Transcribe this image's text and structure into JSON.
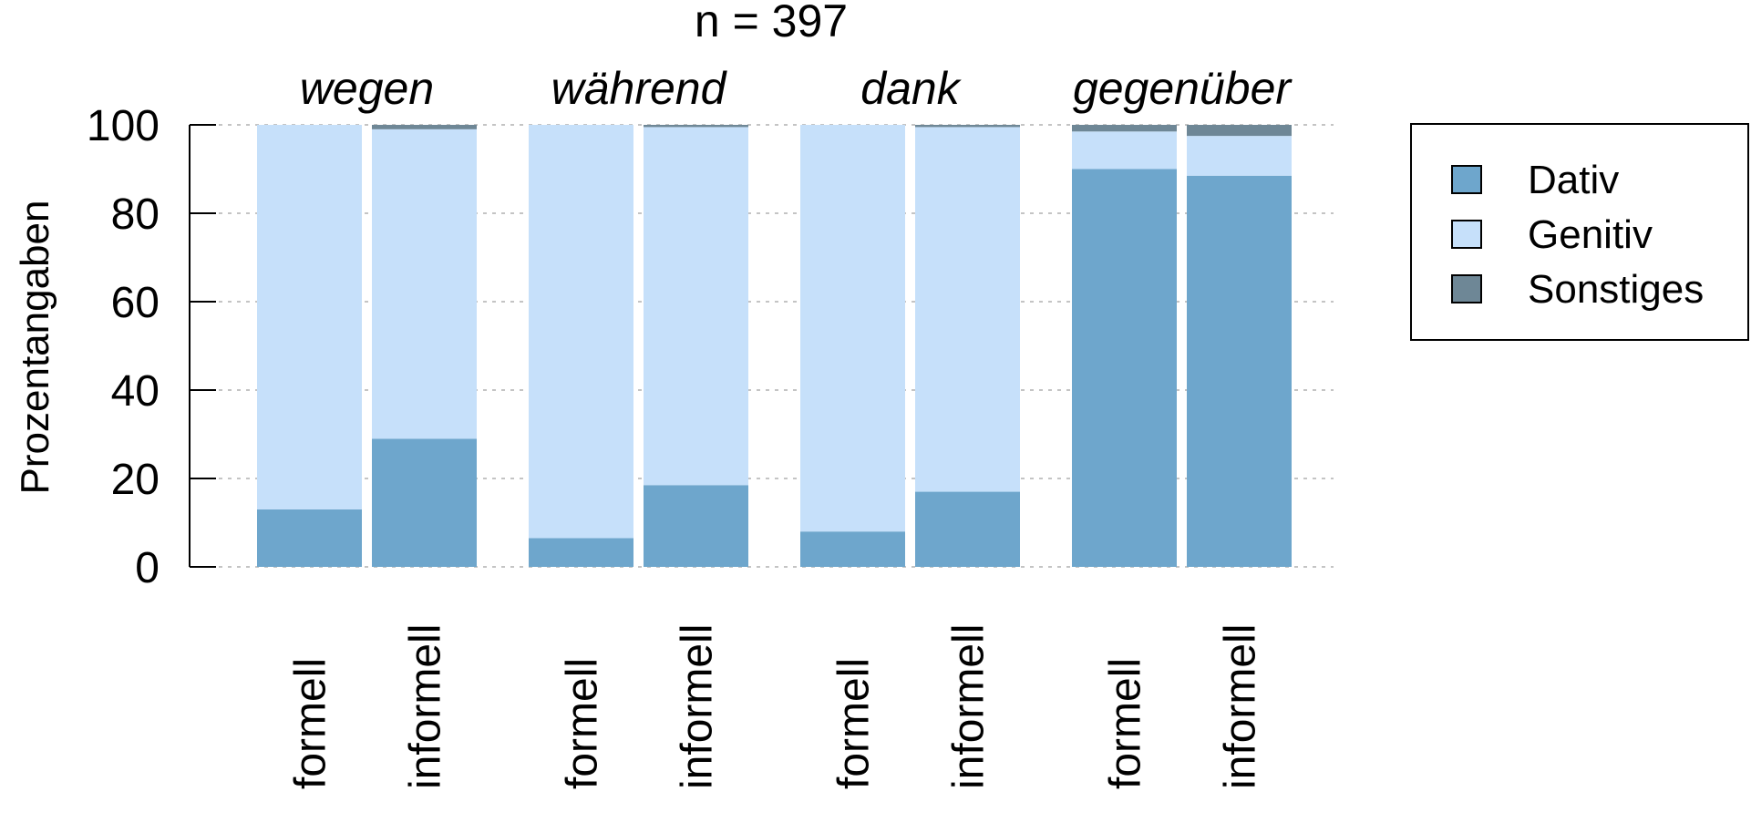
{
  "chart_data": {
    "type": "bar",
    "stacked": true,
    "title": "n = 397",
    "ylabel": "Prozentangaben",
    "xlabel": "",
    "ylim": [
      0,
      100
    ],
    "yticks": [
      "0",
      "20",
      "40",
      "60",
      "80",
      "100"
    ],
    "grid": true,
    "legend_position": "right",
    "groups": [
      {
        "label": "wegen",
        "bars": [
          {
            "label": "formell",
            "values": [
              13,
              87,
              0
            ]
          },
          {
            "label": "informell",
            "values": [
              29,
              70,
              1
            ]
          }
        ]
      },
      {
        "label": "während",
        "bars": [
          {
            "label": "formell",
            "values": [
              6.5,
              93.5,
              0
            ]
          },
          {
            "label": "informell",
            "values": [
              18.5,
              81,
              0.5
            ]
          }
        ]
      },
      {
        "label": "dank",
        "bars": [
          {
            "label": "formell",
            "values": [
              8,
              92,
              0
            ]
          },
          {
            "label": "informell",
            "values": [
              17,
              82.5,
              0.5
            ]
          }
        ]
      },
      {
        "label": "gegenüber",
        "bars": [
          {
            "label": "formell",
            "values": [
              90,
              8.5,
              1.5
            ]
          },
          {
            "label": "informell",
            "values": [
              88.5,
              9,
              2.5
            ]
          }
        ]
      }
    ],
    "series": [
      {
        "name": "Dativ",
        "color": "#6ea6cc"
      },
      {
        "name": "Genitiv",
        "color": "#c6e0fa"
      },
      {
        "name": "Sonstiges",
        "color": "#6e8796"
      }
    ]
  }
}
